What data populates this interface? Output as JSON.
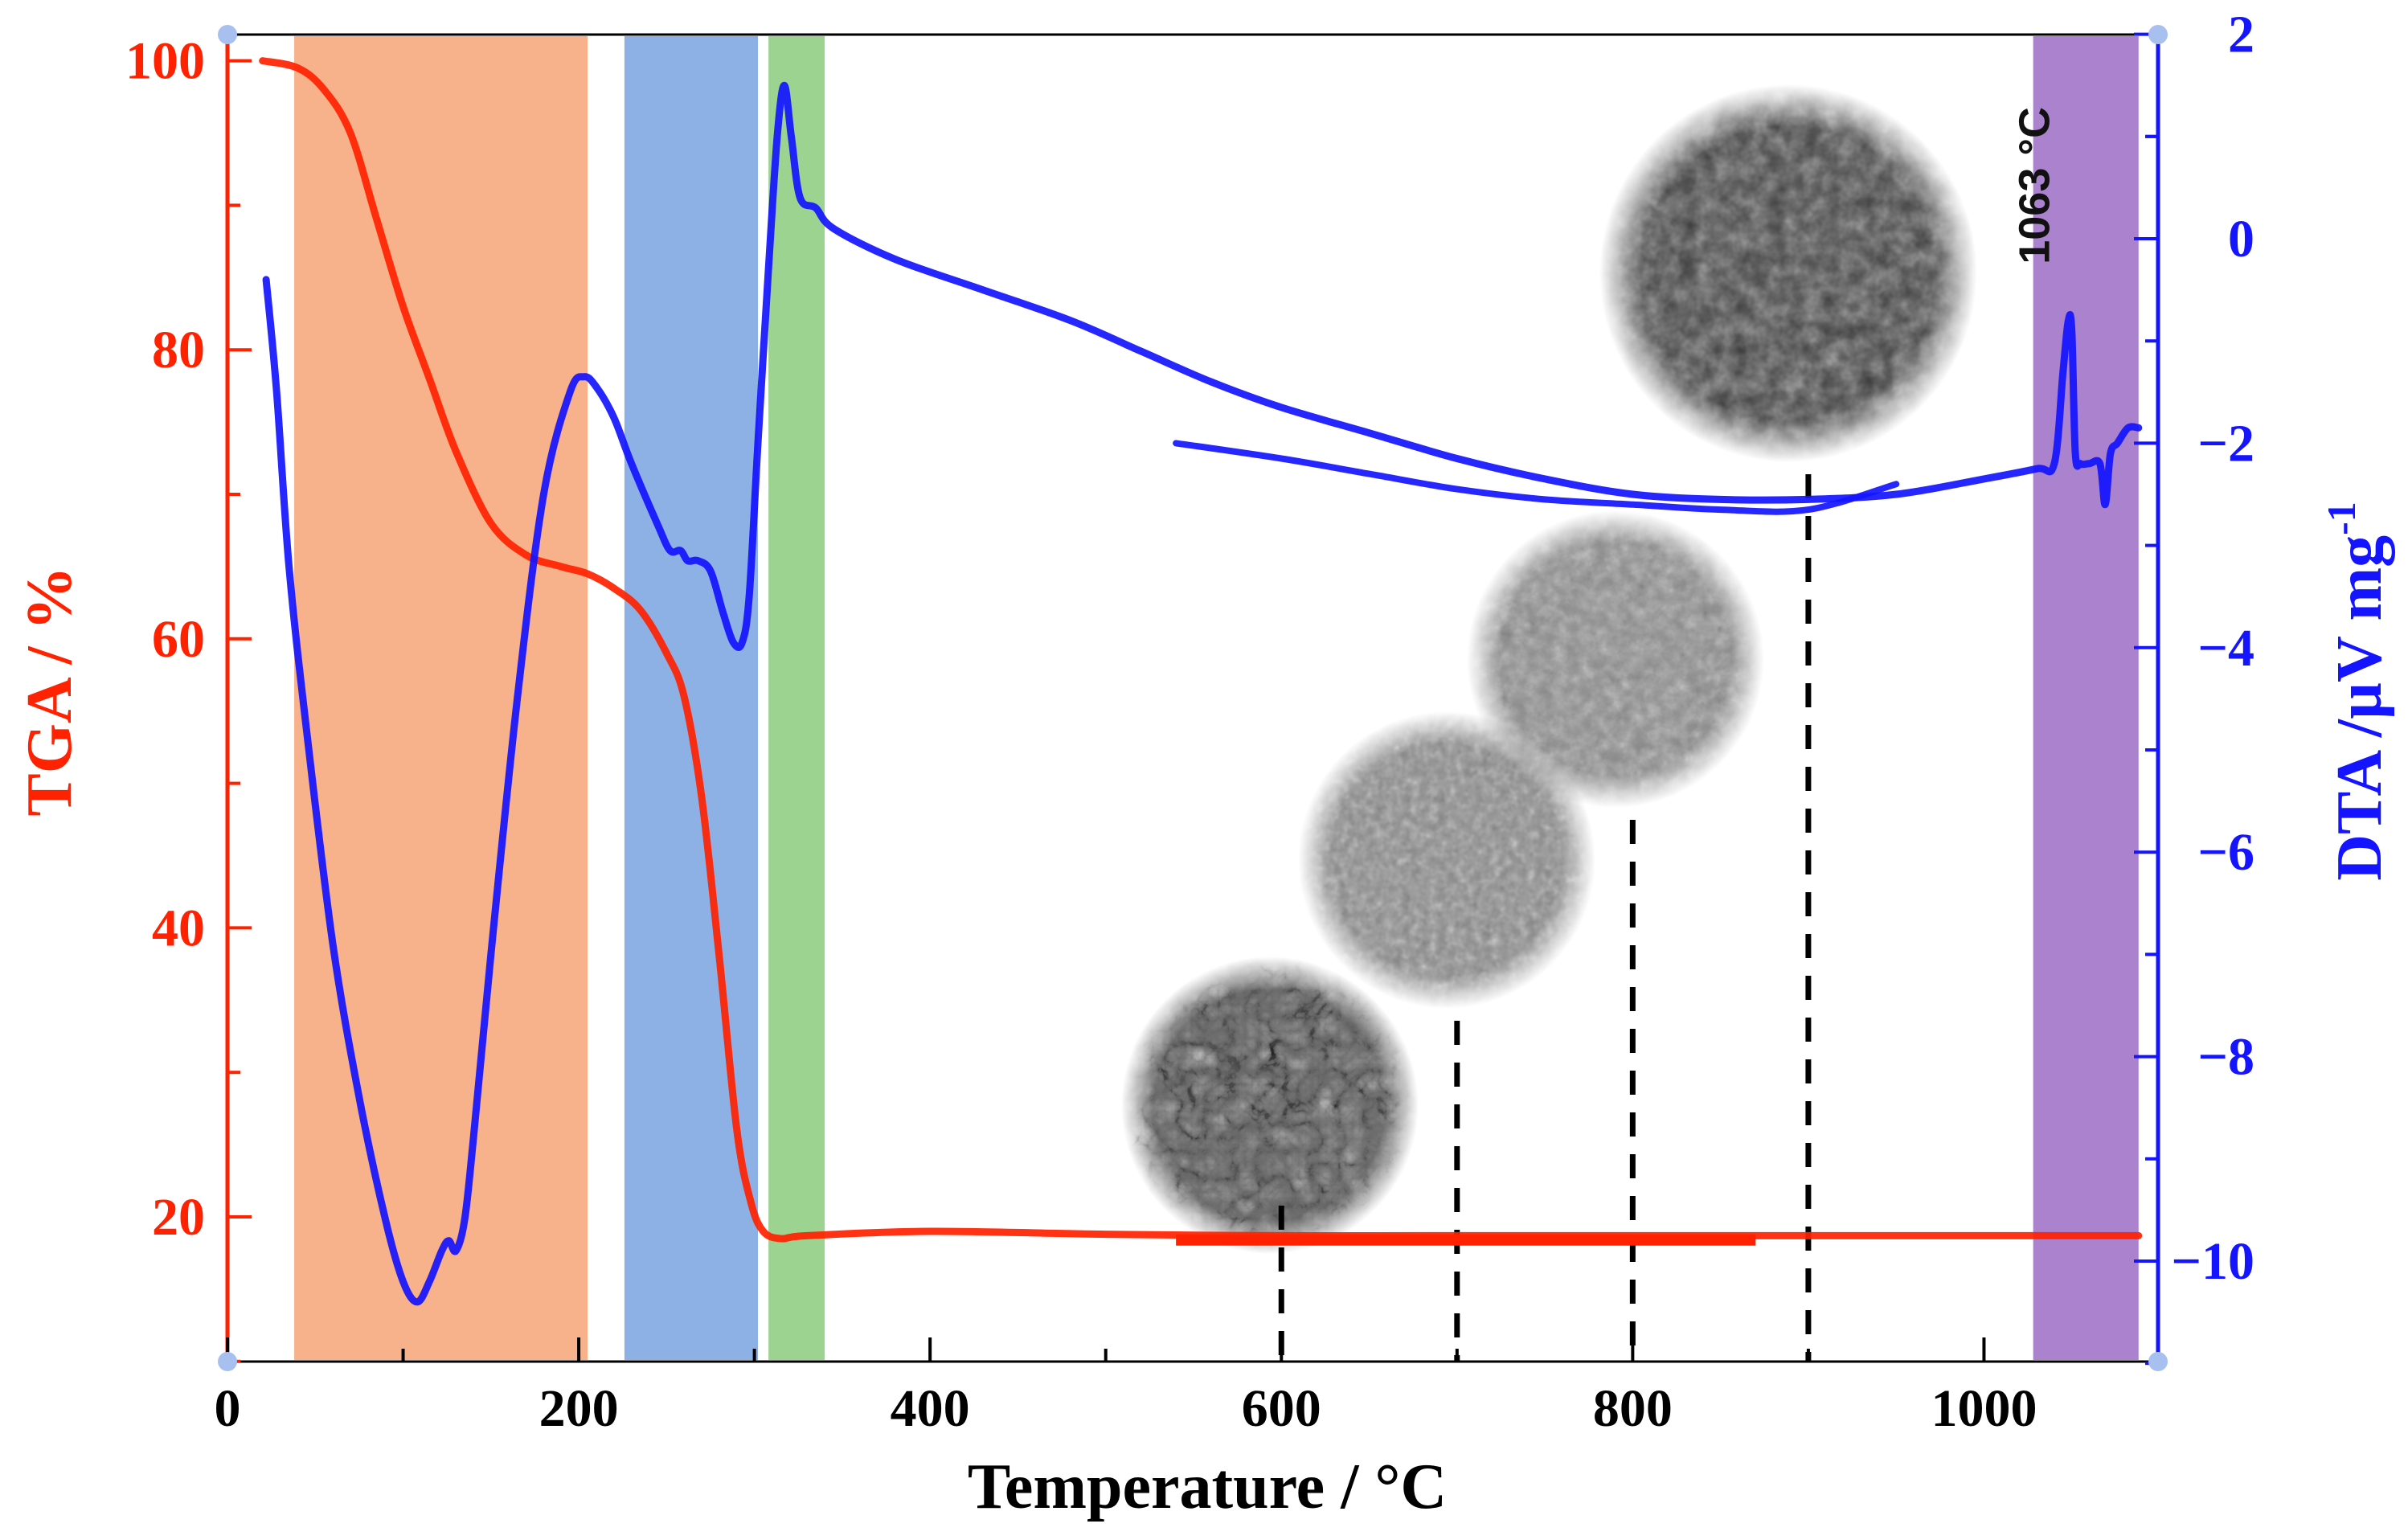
{
  "chart_data": {
    "type": "line",
    "title": "",
    "xlabel": "Temperature / °C",
    "ylabel_left": "TGA / %",
    "ylabel_right": "DTA /µV mg",
    "ylabel_right_sup": "-1",
    "xlim": [
      0,
      1100
    ],
    "ylim_left": [
      10,
      102
    ],
    "ylim_right": [
      -11,
      2
    ],
    "x_ticks": [
      0,
      200,
      400,
      600,
      800,
      1000
    ],
    "x_tick_labels": [
      "0",
      "200",
      "400",
      "600",
      "800",
      "1000"
    ],
    "y_left_ticks": [
      20,
      40,
      60,
      80,
      100
    ],
    "y_left_tick_labels": [
      "20",
      "40",
      "60",
      "80",
      "100"
    ],
    "y_right_ticks": [
      -10,
      -8,
      -6,
      -4,
      -2,
      0,
      2
    ],
    "y_right_tick_labels": [
      "−10",
      "−8",
      "−6",
      "−4",
      "−2",
      "0",
      "2"
    ],
    "colors": {
      "tga": "#ff2200",
      "dta": "#1414ff",
      "band_1": "#f7a577",
      "band_2": "#7aa3e0",
      "band_3": "#8ccb7e",
      "band_4": "#9b6cc6"
    },
    "bands": [
      {
        "name": "stage-1",
        "x_start": 38,
        "x_end": 205
      },
      {
        "name": "stage-2",
        "x_start": 226,
        "x_end": 302
      },
      {
        "name": "stage-3",
        "x_start": 308,
        "x_end": 340
      },
      {
        "name": "stage-4",
        "x_start": 1028,
        "x_end": 1088
      }
    ],
    "series": [
      {
        "name": "TGA",
        "axis": "left",
        "x": [
          20,
          40,
          55,
          70,
          85,
          100,
          115,
          130,
          150,
          170,
          190,
          205,
          220,
          235,
          250,
          260,
          270,
          280,
          290,
          298,
          305,
          315,
          330,
          400,
          500,
          600,
          700,
          800,
          900,
          1000,
          1088
        ],
        "values": [
          100,
          99.5,
          98,
          95,
          89,
          83,
          78,
          73,
          68,
          65.8,
          65,
          64.5,
          63.5,
          62,
          59,
          56,
          49,
          38,
          26,
          21,
          19,
          18.5,
          18.7,
          19.0,
          18.8,
          18.7,
          18.7,
          18.7,
          18.7,
          18.7,
          18.7
        ]
      },
      {
        "name": "DTA",
        "axis": "right",
        "x": [
          22,
          28,
          35,
          45,
          60,
          75,
          90,
          100,
          108,
          115,
          122,
          126,
          130,
          135,
          140,
          150,
          165,
          180,
          195,
          203,
          210,
          220,
          230,
          245,
          252,
          258,
          262,
          268,
          275,
          282,
          288,
          293,
          297,
          302,
          308,
          313,
          317,
          321,
          326,
          335,
          345,
          380,
          430,
          480,
          520,
          560,
          600,
          650,
          700,
          750,
          800,
          850,
          900,
          950,
          1000,
          1030,
          1040,
          1045,
          1048,
          1050,
          1052,
          1055,
          1060,
          1066,
          1069,
          1072,
          1076,
          1082,
          1088
        ],
        "values": [
          -0.4,
          -1.5,
          -3.2,
          -4.8,
          -6.9,
          -8.4,
          -9.6,
          -10.2,
          -10.4,
          -10.2,
          -9.9,
          -9.8,
          -9.9,
          -9.6,
          -8.8,
          -7.0,
          -4.5,
          -2.5,
          -1.5,
          -1.35,
          -1.45,
          -1.75,
          -2.2,
          -2.8,
          -3.05,
          -3.05,
          -3.15,
          -3.15,
          -3.25,
          -3.65,
          -3.95,
          -3.95,
          -3.5,
          -2.0,
          -0.3,
          1.0,
          1.5,
          1.0,
          0.4,
          0.3,
          0.1,
          -0.2,
          -0.5,
          -0.8,
          -1.1,
          -1.4,
          -1.65,
          -1.9,
          -2.15,
          -2.35,
          -2.5,
          -2.55,
          -2.55,
          -2.5,
          -2.35,
          -2.25,
          -2.2,
          -1.3,
          -0.8,
          -0.9,
          -2.1,
          -2.2,
          -2.2,
          -2.2,
          -2.6,
          -2.1,
          -2.0,
          -1.85,
          -1.85
        ]
      },
      {
        "name": "DTA-cooling",
        "axis": "right",
        "x": [
          540,
          600,
          650,
          700,
          750,
          800,
          850,
          900,
          950
        ],
        "values": [
          -2.0,
          -2.15,
          -2.3,
          -2.45,
          -2.55,
          -2.6,
          -2.65,
          -2.65,
          -2.4
        ]
      }
    ],
    "markers": [
      {
        "name": "sem-600",
        "x": 600
      },
      {
        "name": "sem-700",
        "x": 700
      },
      {
        "name": "sem-800",
        "x": 800
      },
      {
        "name": "sem-900",
        "x": 900
      }
    ],
    "annotations": [
      {
        "name": "peak-1063",
        "text": "1063 °C",
        "x": 1050,
        "y_right": -0.8
      }
    ]
  }
}
